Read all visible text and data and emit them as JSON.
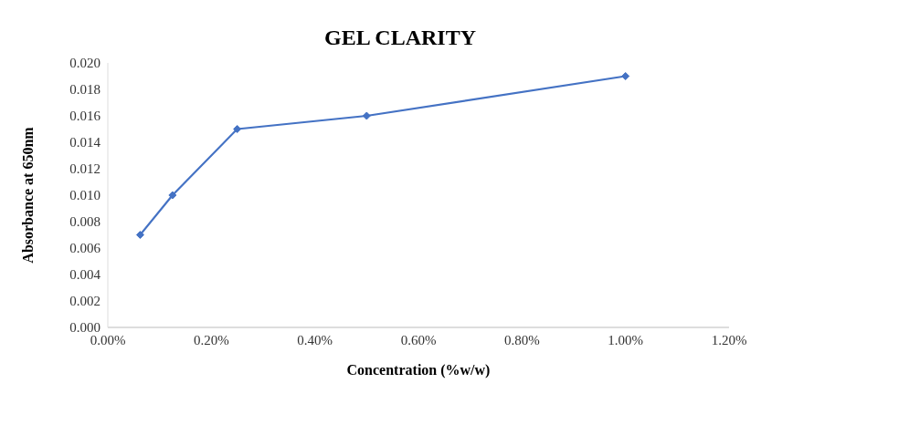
{
  "chart_data": {
    "type": "line",
    "title": "GEL CLARITY",
    "xlabel": "Concentration (%w/w)",
    "ylabel": "Absorbance at 650nm",
    "x": [
      0.0625,
      0.125,
      0.25,
      0.5,
      1.0
    ],
    "series": [
      {
        "color": "#4472c4",
        "values": [
          0.007,
          0.01,
          0.015,
          0.016,
          0.019
        ]
      }
    ],
    "xlim": [
      0,
      1.2
    ],
    "xticks": [
      {
        "value": 0,
        "label": "0.00%"
      },
      {
        "value": 0.2,
        "label": "0.20%"
      },
      {
        "value": 0.4,
        "label": "0.40%"
      },
      {
        "value": 0.6,
        "label": "0.60%"
      },
      {
        "value": 0.8,
        "label": "0.80%"
      },
      {
        "value": 1.0,
        "label": "1.00%"
      },
      {
        "value": 1.2,
        "label": "1.20%"
      }
    ],
    "ylim": [
      0,
      0.02
    ],
    "yticks": [
      {
        "value": 0,
        "label": "0.000"
      },
      {
        "value": 0.002,
        "label": "0.002"
      },
      {
        "value": 0.004,
        "label": "0.004"
      },
      {
        "value": 0.006,
        "label": "0.006"
      },
      {
        "value": 0.008,
        "label": "0.008"
      },
      {
        "value": 0.01,
        "label": "0.010"
      },
      {
        "value": 0.012,
        "label": "0.012"
      },
      {
        "value": 0.014,
        "label": "0.014"
      },
      {
        "value": 0.016,
        "label": "0.016"
      },
      {
        "value": 0.018,
        "label": "0.018"
      },
      {
        "value": 0.02,
        "label": "0.020"
      }
    ],
    "grid": false,
    "legend": false,
    "marker": "diamond",
    "line_style": "solid"
  }
}
